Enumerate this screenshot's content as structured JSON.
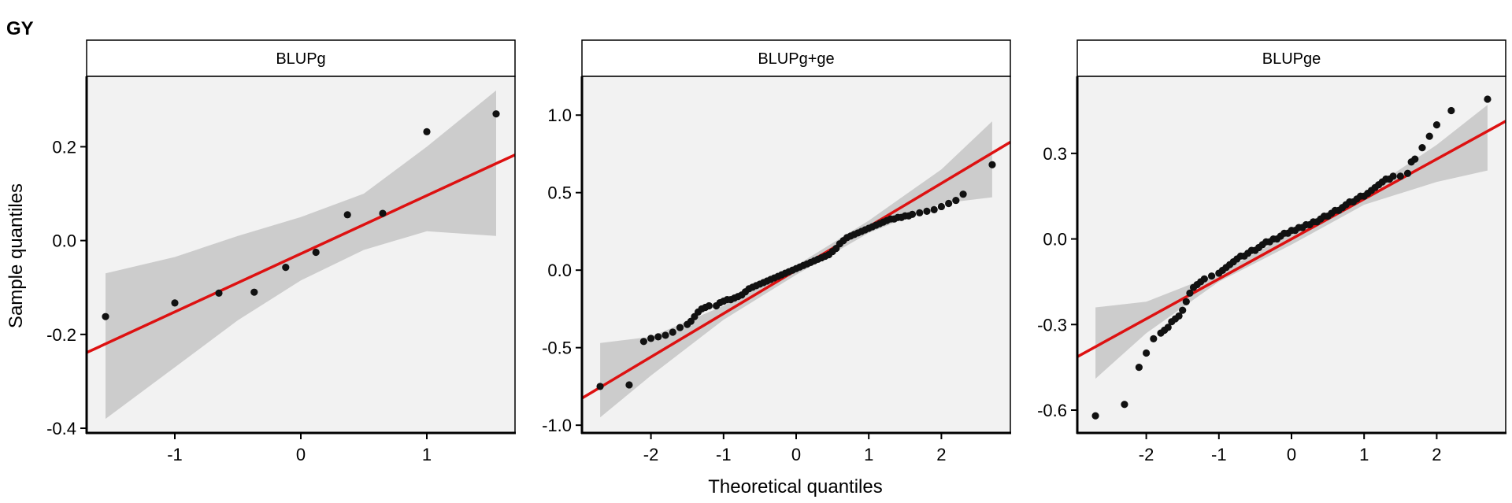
{
  "figure": {
    "title": "GY",
    "xlabel": "Theoretical quantiles",
    "ylabel": "Sample quantiles"
  },
  "chart_data": [
    {
      "type": "scatter",
      "panel": "BLUPg",
      "title": "BLUPg",
      "xlim": [
        -1.7,
        1.7
      ],
      "ylim": [
        -0.41,
        0.35
      ],
      "xticks": [
        -1,
        0,
        1
      ],
      "yticks": [
        -0.4,
        -0.2,
        0.0,
        0.2
      ],
      "ytick_labels": [
        "-0.4",
        "-0.2",
        "0.0",
        "0.2"
      ],
      "grid": false,
      "points": [
        [
          -1.55,
          -0.162
        ],
        [
          -1.0,
          -0.133
        ],
        [
          -0.65,
          -0.112
        ],
        [
          -0.37,
          -0.11
        ],
        [
          -0.12,
          -0.057
        ],
        [
          0.12,
          -0.025
        ],
        [
          0.37,
          0.055
        ],
        [
          0.65,
          0.058
        ],
        [
          1.0,
          0.232
        ],
        [
          1.55,
          0.27
        ]
      ],
      "fit_line": {
        "intercept": -0.028,
        "slope": 0.124,
        "color": "#dd1111"
      },
      "band_color": "#cccccc",
      "band": {
        "x": [
          -1.55,
          -1.0,
          -0.5,
          0.0,
          0.5,
          1.0,
          1.55
        ],
        "lower": [
          -0.38,
          -0.27,
          -0.17,
          -0.085,
          -0.02,
          0.02,
          0.01
        ],
        "upper": [
          -0.07,
          -0.035,
          0.01,
          0.05,
          0.1,
          0.2,
          0.32
        ]
      }
    },
    {
      "type": "scatter",
      "panel": "BLUPg+ge",
      "title": "BLUPg+ge",
      "xlim": [
        -2.95,
        2.95
      ],
      "ylim": [
        -1.05,
        1.25
      ],
      "xticks": [
        -2,
        -1,
        0,
        1,
        2
      ],
      "yticks": [
        -1.0,
        -0.5,
        0.0,
        0.5,
        1.0
      ],
      "ytick_labels": [
        "-1.0",
        "-0.5",
        "0.0",
        "0.5",
        "1.0"
      ],
      "grid": false,
      "points": [
        [
          -2.7,
          -0.75
        ],
        [
          -2.3,
          -0.74
        ],
        [
          -2.1,
          -0.46
        ],
        [
          -2.0,
          -0.44
        ],
        [
          -1.9,
          -0.43
        ],
        [
          -1.8,
          -0.42
        ],
        [
          -1.7,
          -0.4
        ],
        [
          -1.6,
          -0.37
        ],
        [
          -1.5,
          -0.35
        ],
        [
          -1.45,
          -0.33
        ],
        [
          -1.4,
          -0.3
        ],
        [
          -1.35,
          -0.27
        ],
        [
          -1.3,
          -0.25
        ],
        [
          -1.25,
          -0.24
        ],
        [
          -1.2,
          -0.23
        ],
        [
          -1.1,
          -0.23
        ],
        [
          -1.05,
          -0.21
        ],
        [
          -1.0,
          -0.2
        ],
        [
          -0.95,
          -0.19
        ],
        [
          -0.9,
          -0.19
        ],
        [
          -0.85,
          -0.18
        ],
        [
          -0.8,
          -0.17
        ],
        [
          -0.75,
          -0.16
        ],
        [
          -0.7,
          -0.14
        ],
        [
          -0.65,
          -0.12
        ],
        [
          -0.6,
          -0.11
        ],
        [
          -0.55,
          -0.1
        ],
        [
          -0.5,
          -0.09
        ],
        [
          -0.45,
          -0.08
        ],
        [
          -0.4,
          -0.07
        ],
        [
          -0.35,
          -0.06
        ],
        [
          -0.3,
          -0.05
        ],
        [
          -0.25,
          -0.04
        ],
        [
          -0.2,
          -0.03
        ],
        [
          -0.15,
          -0.02
        ],
        [
          -0.1,
          -0.01
        ],
        [
          -0.05,
          0.0
        ],
        [
          0.0,
          0.01
        ],
        [
          0.05,
          0.02
        ],
        [
          0.1,
          0.03
        ],
        [
          0.15,
          0.04
        ],
        [
          0.2,
          0.05
        ],
        [
          0.25,
          0.06
        ],
        [
          0.3,
          0.07
        ],
        [
          0.35,
          0.08
        ],
        [
          0.4,
          0.09
        ],
        [
          0.45,
          0.1
        ],
        [
          0.5,
          0.12
        ],
        [
          0.55,
          0.14
        ],
        [
          0.6,
          0.17
        ],
        [
          0.65,
          0.19
        ],
        [
          0.7,
          0.21
        ],
        [
          0.75,
          0.22
        ],
        [
          0.8,
          0.23
        ],
        [
          0.85,
          0.24
        ],
        [
          0.9,
          0.25
        ],
        [
          0.95,
          0.26
        ],
        [
          1.0,
          0.27
        ],
        [
          1.05,
          0.28
        ],
        [
          1.1,
          0.29
        ],
        [
          1.15,
          0.3
        ],
        [
          1.2,
          0.31
        ],
        [
          1.25,
          0.32
        ],
        [
          1.3,
          0.33
        ],
        [
          1.35,
          0.33
        ],
        [
          1.4,
          0.34
        ],
        [
          1.45,
          0.34
        ],
        [
          1.5,
          0.35
        ],
        [
          1.55,
          0.35
        ],
        [
          1.6,
          0.36
        ],
        [
          1.7,
          0.37
        ],
        [
          1.8,
          0.38
        ],
        [
          1.9,
          0.39
        ],
        [
          2.0,
          0.41
        ],
        [
          2.1,
          0.43
        ],
        [
          2.2,
          0.45
        ],
        [
          2.3,
          0.49
        ],
        [
          2.7,
          0.68
        ]
      ],
      "fit_line": {
        "intercept": 0.0,
        "slope": 0.28,
        "color": "#dd1111"
      },
      "band_color": "#cccccc",
      "band": {
        "x": [
          -2.7,
          -2.0,
          -1.0,
          0.0,
          1.0,
          2.0,
          2.7
        ],
        "lower": [
          -0.95,
          -0.68,
          -0.32,
          -0.03,
          0.24,
          0.43,
          0.47
        ],
        "upper": [
          -0.47,
          -0.43,
          -0.23,
          0.03,
          0.32,
          0.65,
          0.96
        ]
      }
    },
    {
      "type": "scatter",
      "panel": "BLUPge",
      "title": "BLUPge",
      "xlim": [
        -2.95,
        2.95
      ],
      "ylim": [
        -0.68,
        0.57
      ],
      "xticks": [
        -2,
        -1,
        0,
        1,
        2
      ],
      "yticks": [
        -0.6,
        -0.3,
        0.0,
        0.3
      ],
      "ytick_labels": [
        "-0.6",
        "-0.3",
        "0.0",
        "0.3"
      ],
      "grid": false,
      "points": [
        [
          -2.7,
          -0.62
        ],
        [
          -2.3,
          -0.58
        ],
        [
          -2.1,
          -0.45
        ],
        [
          -2.0,
          -0.4
        ],
        [
          -1.9,
          -0.35
        ],
        [
          -1.8,
          -0.33
        ],
        [
          -1.75,
          -0.32
        ],
        [
          -1.7,
          -0.31
        ],
        [
          -1.65,
          -0.29
        ],
        [
          -1.6,
          -0.28
        ],
        [
          -1.55,
          -0.27
        ],
        [
          -1.5,
          -0.25
        ],
        [
          -1.45,
          -0.22
        ],
        [
          -1.4,
          -0.19
        ],
        [
          -1.35,
          -0.17
        ],
        [
          -1.3,
          -0.16
        ],
        [
          -1.25,
          -0.15
        ],
        [
          -1.2,
          -0.14
        ],
        [
          -1.1,
          -0.13
        ],
        [
          -1.0,
          -0.12
        ],
        [
          -0.95,
          -0.11
        ],
        [
          -0.9,
          -0.1
        ],
        [
          -0.85,
          -0.09
        ],
        [
          -0.8,
          -0.08
        ],
        [
          -0.75,
          -0.07
        ],
        [
          -0.7,
          -0.06
        ],
        [
          -0.65,
          -0.06
        ],
        [
          -0.6,
          -0.05
        ],
        [
          -0.55,
          -0.04
        ],
        [
          -0.5,
          -0.04
        ],
        [
          -0.45,
          -0.03
        ],
        [
          -0.4,
          -0.02
        ],
        [
          -0.35,
          -0.01
        ],
        [
          -0.3,
          -0.01
        ],
        [
          -0.25,
          0.0
        ],
        [
          -0.2,
          0.0
        ],
        [
          -0.15,
          0.01
        ],
        [
          -0.1,
          0.02
        ],
        [
          -0.05,
          0.02
        ],
        [
          0.0,
          0.03
        ],
        [
          0.05,
          0.03
        ],
        [
          0.1,
          0.04
        ],
        [
          0.15,
          0.04
        ],
        [
          0.2,
          0.05
        ],
        [
          0.25,
          0.05
        ],
        [
          0.3,
          0.06
        ],
        [
          0.35,
          0.06
        ],
        [
          0.4,
          0.07
        ],
        [
          0.45,
          0.08
        ],
        [
          0.5,
          0.08
        ],
        [
          0.55,
          0.09
        ],
        [
          0.6,
          0.1
        ],
        [
          0.65,
          0.1
        ],
        [
          0.7,
          0.11
        ],
        [
          0.75,
          0.12
        ],
        [
          0.8,
          0.13
        ],
        [
          0.85,
          0.13
        ],
        [
          0.9,
          0.14
        ],
        [
          0.95,
          0.15
        ],
        [
          1.0,
          0.15
        ],
        [
          1.05,
          0.16
        ],
        [
          1.1,
          0.17
        ],
        [
          1.15,
          0.18
        ],
        [
          1.2,
          0.19
        ],
        [
          1.25,
          0.2
        ],
        [
          1.3,
          0.21
        ],
        [
          1.35,
          0.21
        ],
        [
          1.4,
          0.22
        ],
        [
          1.5,
          0.22
        ],
        [
          1.6,
          0.23
        ],
        [
          1.65,
          0.27
        ],
        [
          1.7,
          0.28
        ],
        [
          1.8,
          0.32
        ],
        [
          1.9,
          0.36
        ],
        [
          2.0,
          0.4
        ],
        [
          2.2,
          0.45
        ],
        [
          2.7,
          0.49
        ]
      ],
      "fit_line": {
        "intercept": 0.0,
        "slope": 0.14,
        "color": "#dd1111"
      },
      "band_color": "#cccccc",
      "band": {
        "x": [
          -2.7,
          -2.0,
          -1.0,
          0.0,
          1.0,
          2.0,
          2.7
        ],
        "lower": [
          -0.49,
          -0.33,
          -0.15,
          -0.02,
          0.12,
          0.2,
          0.24
        ],
        "upper": [
          -0.24,
          -0.22,
          -0.12,
          0.02,
          0.16,
          0.33,
          0.47
        ]
      }
    }
  ]
}
